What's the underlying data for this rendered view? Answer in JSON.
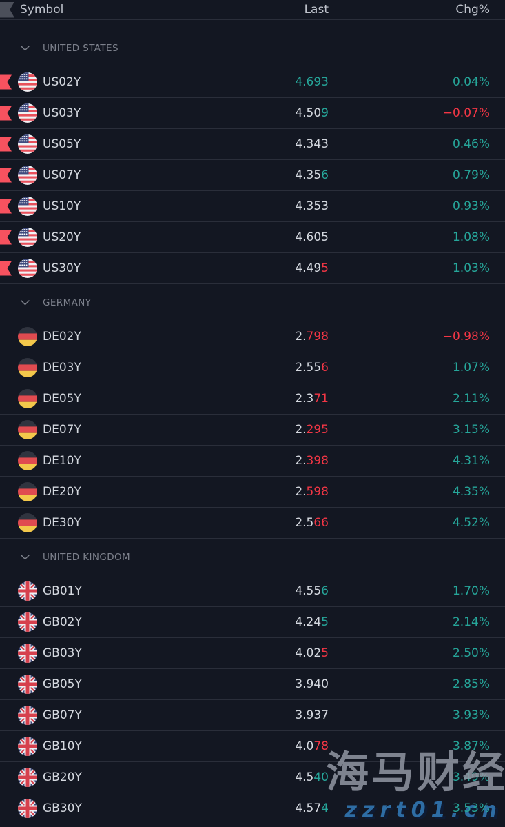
{
  "header": {
    "symbol": "Symbol",
    "last": "Last",
    "chg": "Chg%"
  },
  "colors": {
    "background": "#131722",
    "separator": "#2a2e3a",
    "up": "#26a69a",
    "down": "#f23645",
    "neutral": "#d5d9e0",
    "flag_marker": "#f7525f"
  },
  "icons": {
    "header_left": "flag-column-icon",
    "group_toggle": "chevron-down-icon",
    "row_marker": "flag-marker-icon"
  },
  "groups": [
    {
      "label": "UNITED STATES",
      "country": "us",
      "rows": [
        {
          "symbol": "US02Y",
          "flagged": true,
          "last": [
            [
              "4.693",
              "up"
            ]
          ],
          "chg": "0.04%",
          "chg_dir": "up"
        },
        {
          "symbol": "US03Y",
          "flagged": true,
          "last": [
            [
              "4.50",
              "n"
            ],
            [
              "9",
              "up"
            ]
          ],
          "chg": "−0.07%",
          "chg_dir": "down"
        },
        {
          "symbol": "US05Y",
          "flagged": true,
          "last": [
            [
              "4.343",
              "n"
            ]
          ],
          "chg": "0.46%",
          "chg_dir": "up"
        },
        {
          "symbol": "US07Y",
          "flagged": true,
          "last": [
            [
              "4.35",
              "n"
            ],
            [
              "6",
              "up"
            ]
          ],
          "chg": "0.79%",
          "chg_dir": "up"
        },
        {
          "symbol": "US10Y",
          "flagged": true,
          "last": [
            [
              "4.353",
              "n"
            ]
          ],
          "chg": "0.93%",
          "chg_dir": "up"
        },
        {
          "symbol": "US20Y",
          "flagged": true,
          "last": [
            [
              "4.605",
              "n"
            ]
          ],
          "chg": "1.08%",
          "chg_dir": "up"
        },
        {
          "symbol": "US30Y",
          "flagged": true,
          "last": [
            [
              "4.49",
              "n"
            ],
            [
              "5",
              "down"
            ]
          ],
          "chg": "1.03%",
          "chg_dir": "up"
        }
      ]
    },
    {
      "label": "GERMANY",
      "country": "de",
      "rows": [
        {
          "symbol": "DE02Y",
          "flagged": false,
          "last": [
            [
              "2.",
              "n"
            ],
            [
              "798",
              "down"
            ]
          ],
          "chg": "−0.98%",
          "chg_dir": "down"
        },
        {
          "symbol": "DE03Y",
          "flagged": false,
          "last": [
            [
              "2.55",
              "n"
            ],
            [
              "6",
              "down"
            ]
          ],
          "chg": "1.07%",
          "chg_dir": "up"
        },
        {
          "symbol": "DE05Y",
          "flagged": false,
          "last": [
            [
              "2.3",
              "n"
            ],
            [
              "71",
              "down"
            ]
          ],
          "chg": "2.11%",
          "chg_dir": "up"
        },
        {
          "symbol": "DE07Y",
          "flagged": false,
          "last": [
            [
              "2.",
              "n"
            ],
            [
              "295",
              "down"
            ]
          ],
          "chg": "3.15%",
          "chg_dir": "up"
        },
        {
          "symbol": "DE10Y",
          "flagged": false,
          "last": [
            [
              "2.",
              "n"
            ],
            [
              "398",
              "down"
            ]
          ],
          "chg": "4.31%",
          "chg_dir": "up"
        },
        {
          "symbol": "DE20Y",
          "flagged": false,
          "last": [
            [
              "2.",
              "n"
            ],
            [
              "598",
              "down"
            ]
          ],
          "chg": "4.35%",
          "chg_dir": "up"
        },
        {
          "symbol": "DE30Y",
          "flagged": false,
          "last": [
            [
              "2.5",
              "n"
            ],
            [
              "66",
              "down"
            ]
          ],
          "chg": "4.52%",
          "chg_dir": "up"
        }
      ]
    },
    {
      "label": "UNITED KINGDOM",
      "country": "gb",
      "rows": [
        {
          "symbol": "GB01Y",
          "flagged": false,
          "last": [
            [
              "4.55",
              "n"
            ],
            [
              "6",
              "up"
            ]
          ],
          "chg": "1.70%",
          "chg_dir": "up"
        },
        {
          "symbol": "GB02Y",
          "flagged": false,
          "last": [
            [
              "4.24",
              "n"
            ],
            [
              "5",
              "up"
            ]
          ],
          "chg": "2.14%",
          "chg_dir": "up"
        },
        {
          "symbol": "GB03Y",
          "flagged": false,
          "last": [
            [
              "4.02",
              "n"
            ],
            [
              "5",
              "down"
            ]
          ],
          "chg": "2.50%",
          "chg_dir": "up"
        },
        {
          "symbol": "GB05Y",
          "flagged": false,
          "last": [
            [
              "3.940",
              "n"
            ]
          ],
          "chg": "2.85%",
          "chg_dir": "up"
        },
        {
          "symbol": "GB07Y",
          "flagged": false,
          "last": [
            [
              "3.937",
              "n"
            ]
          ],
          "chg": "3.93%",
          "chg_dir": "up"
        },
        {
          "symbol": "GB10Y",
          "flagged": false,
          "last": [
            [
              "4.0",
              "n"
            ],
            [
              "78",
              "down"
            ]
          ],
          "chg": "3.87%",
          "chg_dir": "up"
        },
        {
          "symbol": "GB20Y",
          "flagged": false,
          "last": [
            [
              "4.5",
              "n"
            ],
            [
              "40",
              "up"
            ]
          ],
          "chg": "3.49%",
          "chg_dir": "up"
        },
        {
          "symbol": "GB30Y",
          "flagged": false,
          "last": [
            [
              "4.57",
              "n"
            ],
            [
              "4",
              "up"
            ]
          ],
          "chg": "3.53%",
          "chg_dir": "up",
          "above_watermark": true
        }
      ]
    }
  ],
  "watermark": {
    "line1": "海马财经",
    "line2": "zzrt01.cn"
  }
}
